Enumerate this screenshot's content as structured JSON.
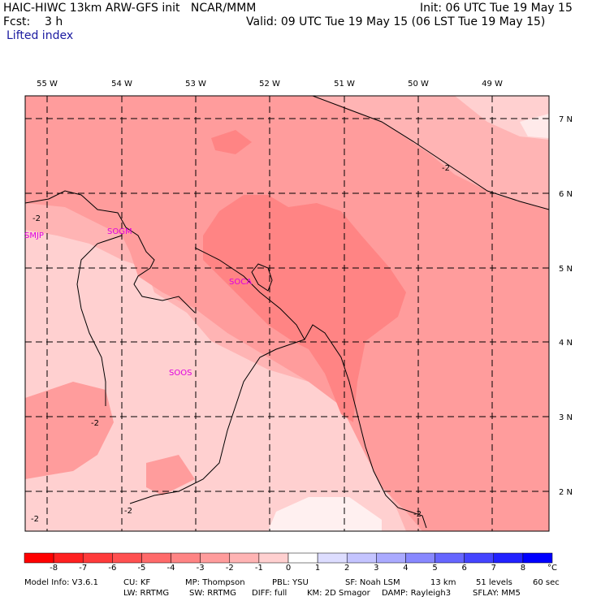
{
  "header": {
    "model_title": "HAIC-HIWC 13km ARW-GFS init   NCAR/MMM",
    "init_time": "Init: 06 UTC Tue 19 May 15",
    "forecast_label": "Fcst:    3 h",
    "valid_time": "Valid: 09 UTC Tue 19 May 15 (06 LST Tue 19 May 15)",
    "field_name": "Lifted index"
  },
  "map": {
    "lon_labels": [
      "55 W",
      "54 W",
      "53 W",
      "52 W",
      "51 W",
      "50 W",
      "49 W"
    ],
    "lat_labels": [
      "7 N",
      "6 N",
      "5 N",
      "4 N",
      "3 N",
      "2 N"
    ],
    "stations": [
      "SMJP",
      "SOGM",
      "SOCA",
      "SOOS"
    ],
    "contour_labels": [
      "-2",
      "-2",
      "-2",
      "-2",
      "-2",
      "-2"
    ]
  },
  "colorbar": {
    "units": "°C",
    "tick_labels": [
      "-8",
      "-7",
      "-6",
      "-5",
      "-4",
      "-3",
      "-2",
      "-1",
      "0",
      "1",
      "2",
      "3",
      "4",
      "5",
      "6",
      "7",
      "8"
    ],
    "colors": [
      "#ff0000",
      "#ff2020",
      "#ff3a3a",
      "#ff5050",
      "#ff6a6a",
      "#ff8484",
      "#ff9c9c",
      "#ffb4b4",
      "#ffd0d0",
      "#ffffff",
      "#ddddff",
      "#c4c4ff",
      "#aaaaff",
      "#8888ff",
      "#6666ff",
      "#4444ff",
      "#2222ff",
      "#0000ff"
    ]
  },
  "footer": {
    "line1": [
      "Model Info: V3.6.1",
      "CU: KF",
      "MP: Thompson",
      "PBL: YSU",
      "SF: Noah LSM",
      "13 km",
      "51 levels",
      "60 sec"
    ],
    "line2": [
      "LW: RRTMG",
      "SW: RRTMG",
      "DIFF: full",
      "KM: 2D Smagor",
      "DAMP: Rayleigh3",
      "SFLAY: MM5"
    ]
  }
}
